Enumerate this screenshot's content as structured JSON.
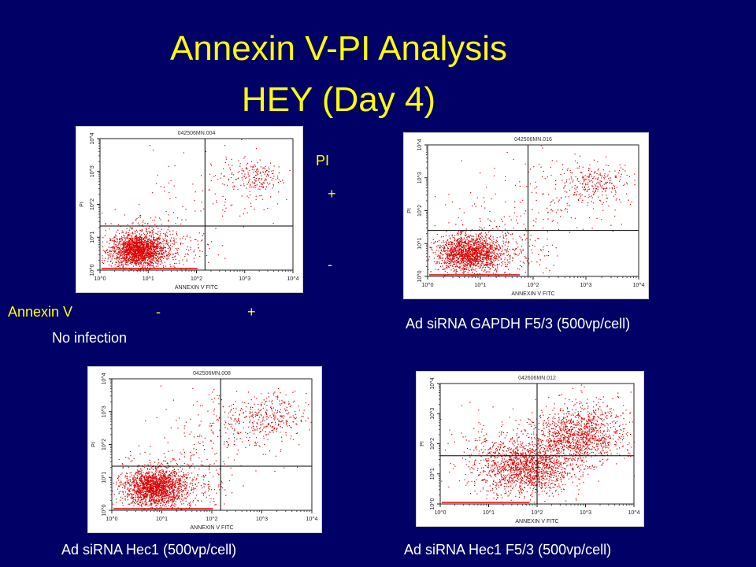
{
  "title": {
    "line1": "Annexin V-PI Analysis",
    "line2": "HEY (Day 4)"
  },
  "legend": {
    "pi_label": "PI",
    "pi_plus": "+",
    "pi_minus": "-",
    "annexin_label": "Annexin V",
    "annexin_minus": "-",
    "annexin_plus": "+"
  },
  "colors": {
    "background": "#000066",
    "title": "#ffff00",
    "caption": "#ffffff",
    "dots": "#dd0000"
  },
  "chart_data": [
    {
      "type": "scatter",
      "file_id": "042506MN.004",
      "caption": "No infection",
      "xlabel": "ANNEXIN V FITC",
      "ylabel": "PI",
      "x_scale": "log",
      "y_scale": "log",
      "xlim": [
        1,
        10000
      ],
      "ylim": [
        1,
        10000
      ],
      "x_ticks": [
        "10^0",
        "10^1",
        "10^2",
        "10^3",
        "10^4"
      ],
      "y_ticks": [
        "10^0",
        "10^1",
        "10^2",
        "10^3",
        "10^4"
      ],
      "quadrant_gate": {
        "x": 150,
        "y": 22
      },
      "clusters": [
        {
          "x": 6,
          "y": 4,
          "spread": 0.28,
          "count": 1700
        },
        {
          "x": 12,
          "y": 6,
          "spread": 0.55,
          "count": 400
        },
        {
          "x": 1500,
          "y": 700,
          "spread": 0.3,
          "count": 180
        },
        {
          "x": 300,
          "y": 300,
          "spread": 0.7,
          "count": 100
        }
      ]
    },
    {
      "type": "scatter",
      "file_id": "042506MN.016",
      "caption": "Ad siRNA GAPDH F5/3 (500vp/cell)",
      "xlabel": "ANNEXIN V FITC",
      "ylabel": "PI",
      "x_scale": "log",
      "y_scale": "log",
      "xlim": [
        1,
        10000
      ],
      "ylim": [
        1,
        10000
      ],
      "x_ticks": [
        "10^0",
        "10^1",
        "10^2",
        "10^3",
        "10^4"
      ],
      "y_ticks": [
        "10^0",
        "10^1",
        "10^2",
        "10^3",
        "10^4"
      ],
      "quadrant_gate": {
        "x": 80,
        "y": 25
      },
      "clusters": [
        {
          "x": 6,
          "y": 5,
          "spread": 0.3,
          "count": 1400
        },
        {
          "x": 14,
          "y": 6,
          "spread": 0.55,
          "count": 400
        },
        {
          "x": 1500,
          "y": 700,
          "spread": 0.35,
          "count": 250
        },
        {
          "x": 200,
          "y": 250,
          "spread": 0.8,
          "count": 150
        }
      ]
    },
    {
      "type": "scatter",
      "file_id": "042506MN.008",
      "caption": "Ad siRNA Hec1 (500vp/cell)",
      "xlabel": "ANNEXIN V FITC",
      "ylabel": "PI",
      "x_scale": "log",
      "y_scale": "log",
      "xlim": [
        1,
        10000
      ],
      "ylim": [
        1,
        10000
      ],
      "x_ticks": [
        "10^0",
        "10^1",
        "10^2",
        "10^3",
        "10^4"
      ],
      "y_ticks": [
        "10^0",
        "10^1",
        "10^2",
        "10^3",
        "10^4"
      ],
      "quadrant_gate": {
        "x": 150,
        "y": 22
      },
      "clusters": [
        {
          "x": 7,
          "y": 5,
          "spread": 0.3,
          "count": 1600
        },
        {
          "x": 15,
          "y": 7,
          "spread": 0.55,
          "count": 450
        },
        {
          "x": 1200,
          "y": 700,
          "spread": 0.4,
          "count": 300
        },
        {
          "x": 250,
          "y": 300,
          "spread": 0.75,
          "count": 200
        }
      ]
    },
    {
      "type": "scatter",
      "file_id": "042606MN.012",
      "caption": "Ad siRNA Hec1 F5/3 (500vp/cell)",
      "xlabel": "ANNEXIN V FITC",
      "ylabel": "PI",
      "x_scale": "log",
      "y_scale": "log",
      "xlim": [
        1,
        10000
      ],
      "ylim": [
        1,
        10000
      ],
      "x_ticks": [
        "10^0",
        "10^1",
        "10^2",
        "10^3",
        "10^4"
      ],
      "y_ticks": [
        "10^0",
        "10^1",
        "10^2",
        "10^3",
        "10^4"
      ],
      "quadrant_gate": {
        "x": 100,
        "y": 40
      },
      "clusters": [
        {
          "x": 60,
          "y": 15,
          "spread": 0.45,
          "count": 1100
        },
        {
          "x": 700,
          "y": 150,
          "spread": 0.45,
          "count": 900
        },
        {
          "x": 30,
          "y": 30,
          "spread": 0.7,
          "count": 500
        },
        {
          "x": 1000,
          "y": 600,
          "spread": 0.5,
          "count": 300
        }
      ]
    }
  ]
}
